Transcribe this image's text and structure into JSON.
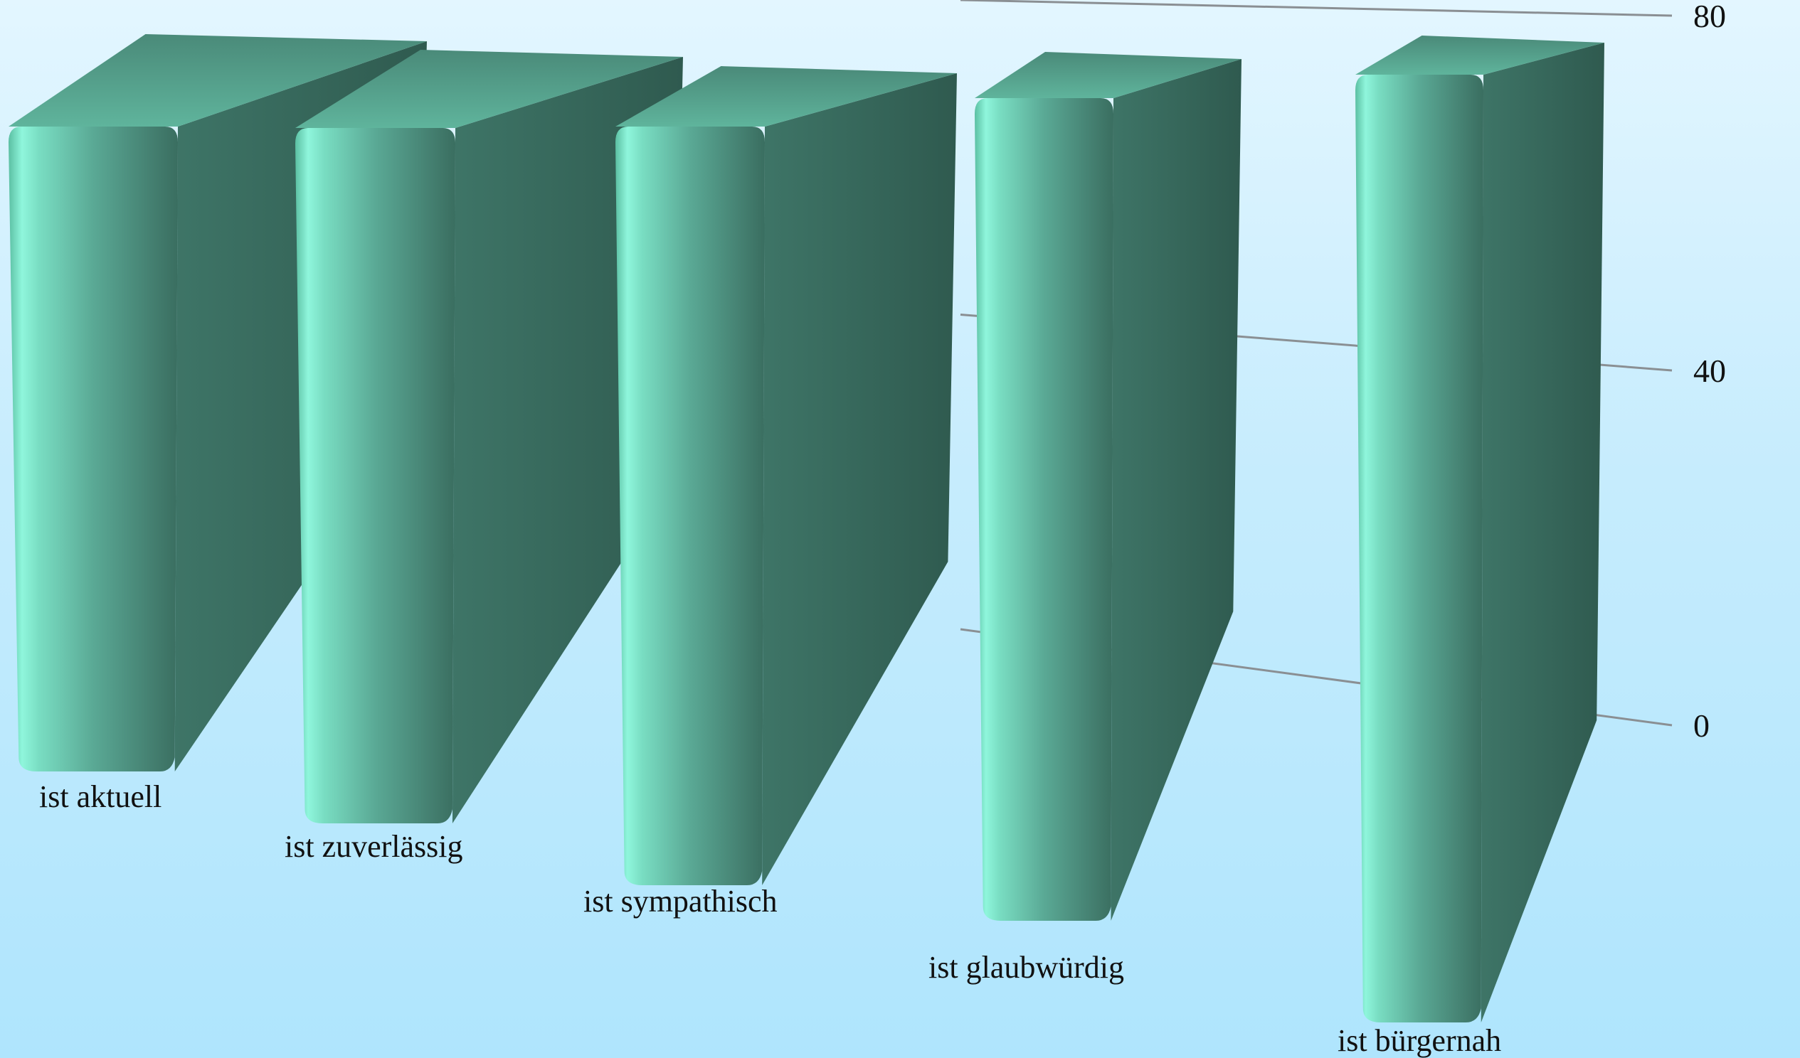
{
  "chart_data": {
    "type": "bar",
    "style": "3d-rounded",
    "categories": [
      "ist aktuell",
      "ist zuverlässig",
      "ist sympathisch",
      "ist glaubwürdig",
      "ist bürgernah"
    ],
    "values": [
      68,
      70,
      72,
      74,
      76
    ],
    "yticks": [
      "0",
      "40",
      "80"
    ],
    "ylim": [
      0,
      80
    ],
    "grid": true,
    "legend": "none",
    "colors": {
      "bar_light": "#8ff6dc",
      "bar_mid": "#5dc0a2",
      "bar_dark": "#3a6e60",
      "background_top": "#e3f6ff",
      "background_bottom": "#afe5fd",
      "grid": "#8a8f93"
    }
  }
}
